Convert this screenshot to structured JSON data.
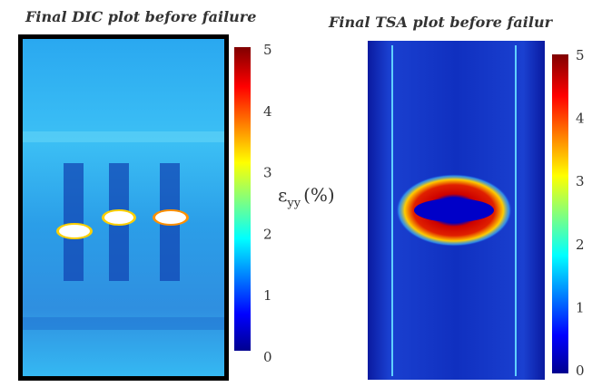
{
  "panels": [
    {
      "title": "Final DIC plot before failure",
      "colorbar": {
        "ticks": [
          "5",
          "4",
          "3",
          "2",
          "1",
          "0"
        ],
        "label": {
          "symbol": "ε",
          "subscript": "yy",
          "unit": "(%)"
        }
      }
    },
    {
      "title": "Final TSA plot before failur",
      "colorbar": {
        "ticks": [
          "5",
          "4",
          "3",
          "2",
          "1",
          "0"
        ]
      }
    }
  ]
}
